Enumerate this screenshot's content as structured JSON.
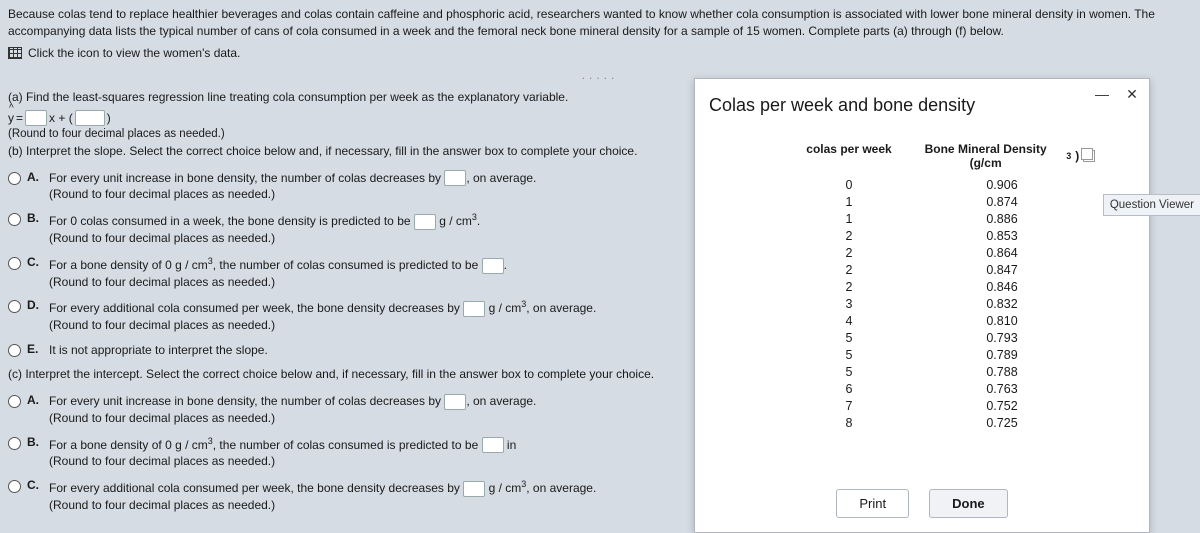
{
  "intro": "Because colas tend to replace healthier beverages and colas contain caffeine and phosphoric acid, researchers wanted to know whether cola consumption is associated with lower bone mineral density in women. The accompanying data lists the typical number of cans of cola consumed in a week and the femoral neck bone mineral density for a sample of 15 women. Complete parts (a) through (f) below.",
  "data_link": "Click the icon to view the women's data.",
  "dots": ".....",
  "part_a": "(a) Find the least-squares regression line treating cola consumption per week as the explanatory variable.",
  "eq_prefix": "y",
  "eq_eq": " = ",
  "eq_plus": "x + (",
  "eq_close": ")",
  "round4": "(Round to four decimal places as needed.)",
  "part_b": "(b) Interpret the slope. Select the correct choice below and, if necessary, fill in the answer box to complete your choice.",
  "b_choices": {
    "A": {
      "t1": "For every unit increase in bone density, the number of colas decreases by ",
      "t2": ", on average."
    },
    "B": {
      "t1": "For 0 colas consumed in a week, the bone density is predicted to be ",
      "t2": " g / cm"
    },
    "C": {
      "t1": "For a bone density of 0 g / cm",
      "t2": ", the number of colas consumed is predicted to be ",
      "t3": "."
    },
    "D": {
      "t1": "For every additional cola consumed per week, the bone density decreases by ",
      "t2": " g / cm",
      "t3": ", on average."
    },
    "E": {
      "t1": "It is not appropriate to interpret the slope."
    }
  },
  "part_c": "(c) Interpret the intercept. Select the correct choice below and, if necessary, fill in the answer box to complete your choice.",
  "c_choices": {
    "A": {
      "t1": "For every unit increase in bone density, the number of colas decreases by ",
      "t2": ", on average."
    },
    "B": {
      "t1": "For a bone density of 0 g / cm",
      "t2": ", the number of colas consumed is predicted to be ",
      "t3": " in ",
      "t4": "."
    },
    "C": {
      "t1": "For every additional cola consumed per week, the bone density decreases by ",
      "t2": " g / cm",
      "t3": ", on average."
    }
  },
  "popup": {
    "title": "Colas per week and bone density",
    "col1": "colas per week",
    "col2": "Bone Mineral Density (g/cm",
    "col2_close": ")",
    "rows": [
      {
        "c": "0",
        "d": "0.906"
      },
      {
        "c": "1",
        "d": "0.874"
      },
      {
        "c": "1",
        "d": "0.886"
      },
      {
        "c": "2",
        "d": "0.853"
      },
      {
        "c": "2",
        "d": "0.864"
      },
      {
        "c": "2",
        "d": "0.847"
      },
      {
        "c": "2",
        "d": "0.846"
      },
      {
        "c": "3",
        "d": "0.832"
      },
      {
        "c": "4",
        "d": "0.810"
      },
      {
        "c": "5",
        "d": "0.793"
      },
      {
        "c": "5",
        "d": "0.789"
      },
      {
        "c": "5",
        "d": "0.788"
      },
      {
        "c": "6",
        "d": "0.763"
      },
      {
        "c": "7",
        "d": "0.752"
      },
      {
        "c": "8",
        "d": "0.725"
      }
    ],
    "print": "Print",
    "done": "Done"
  },
  "qv": "Question Viewer"
}
